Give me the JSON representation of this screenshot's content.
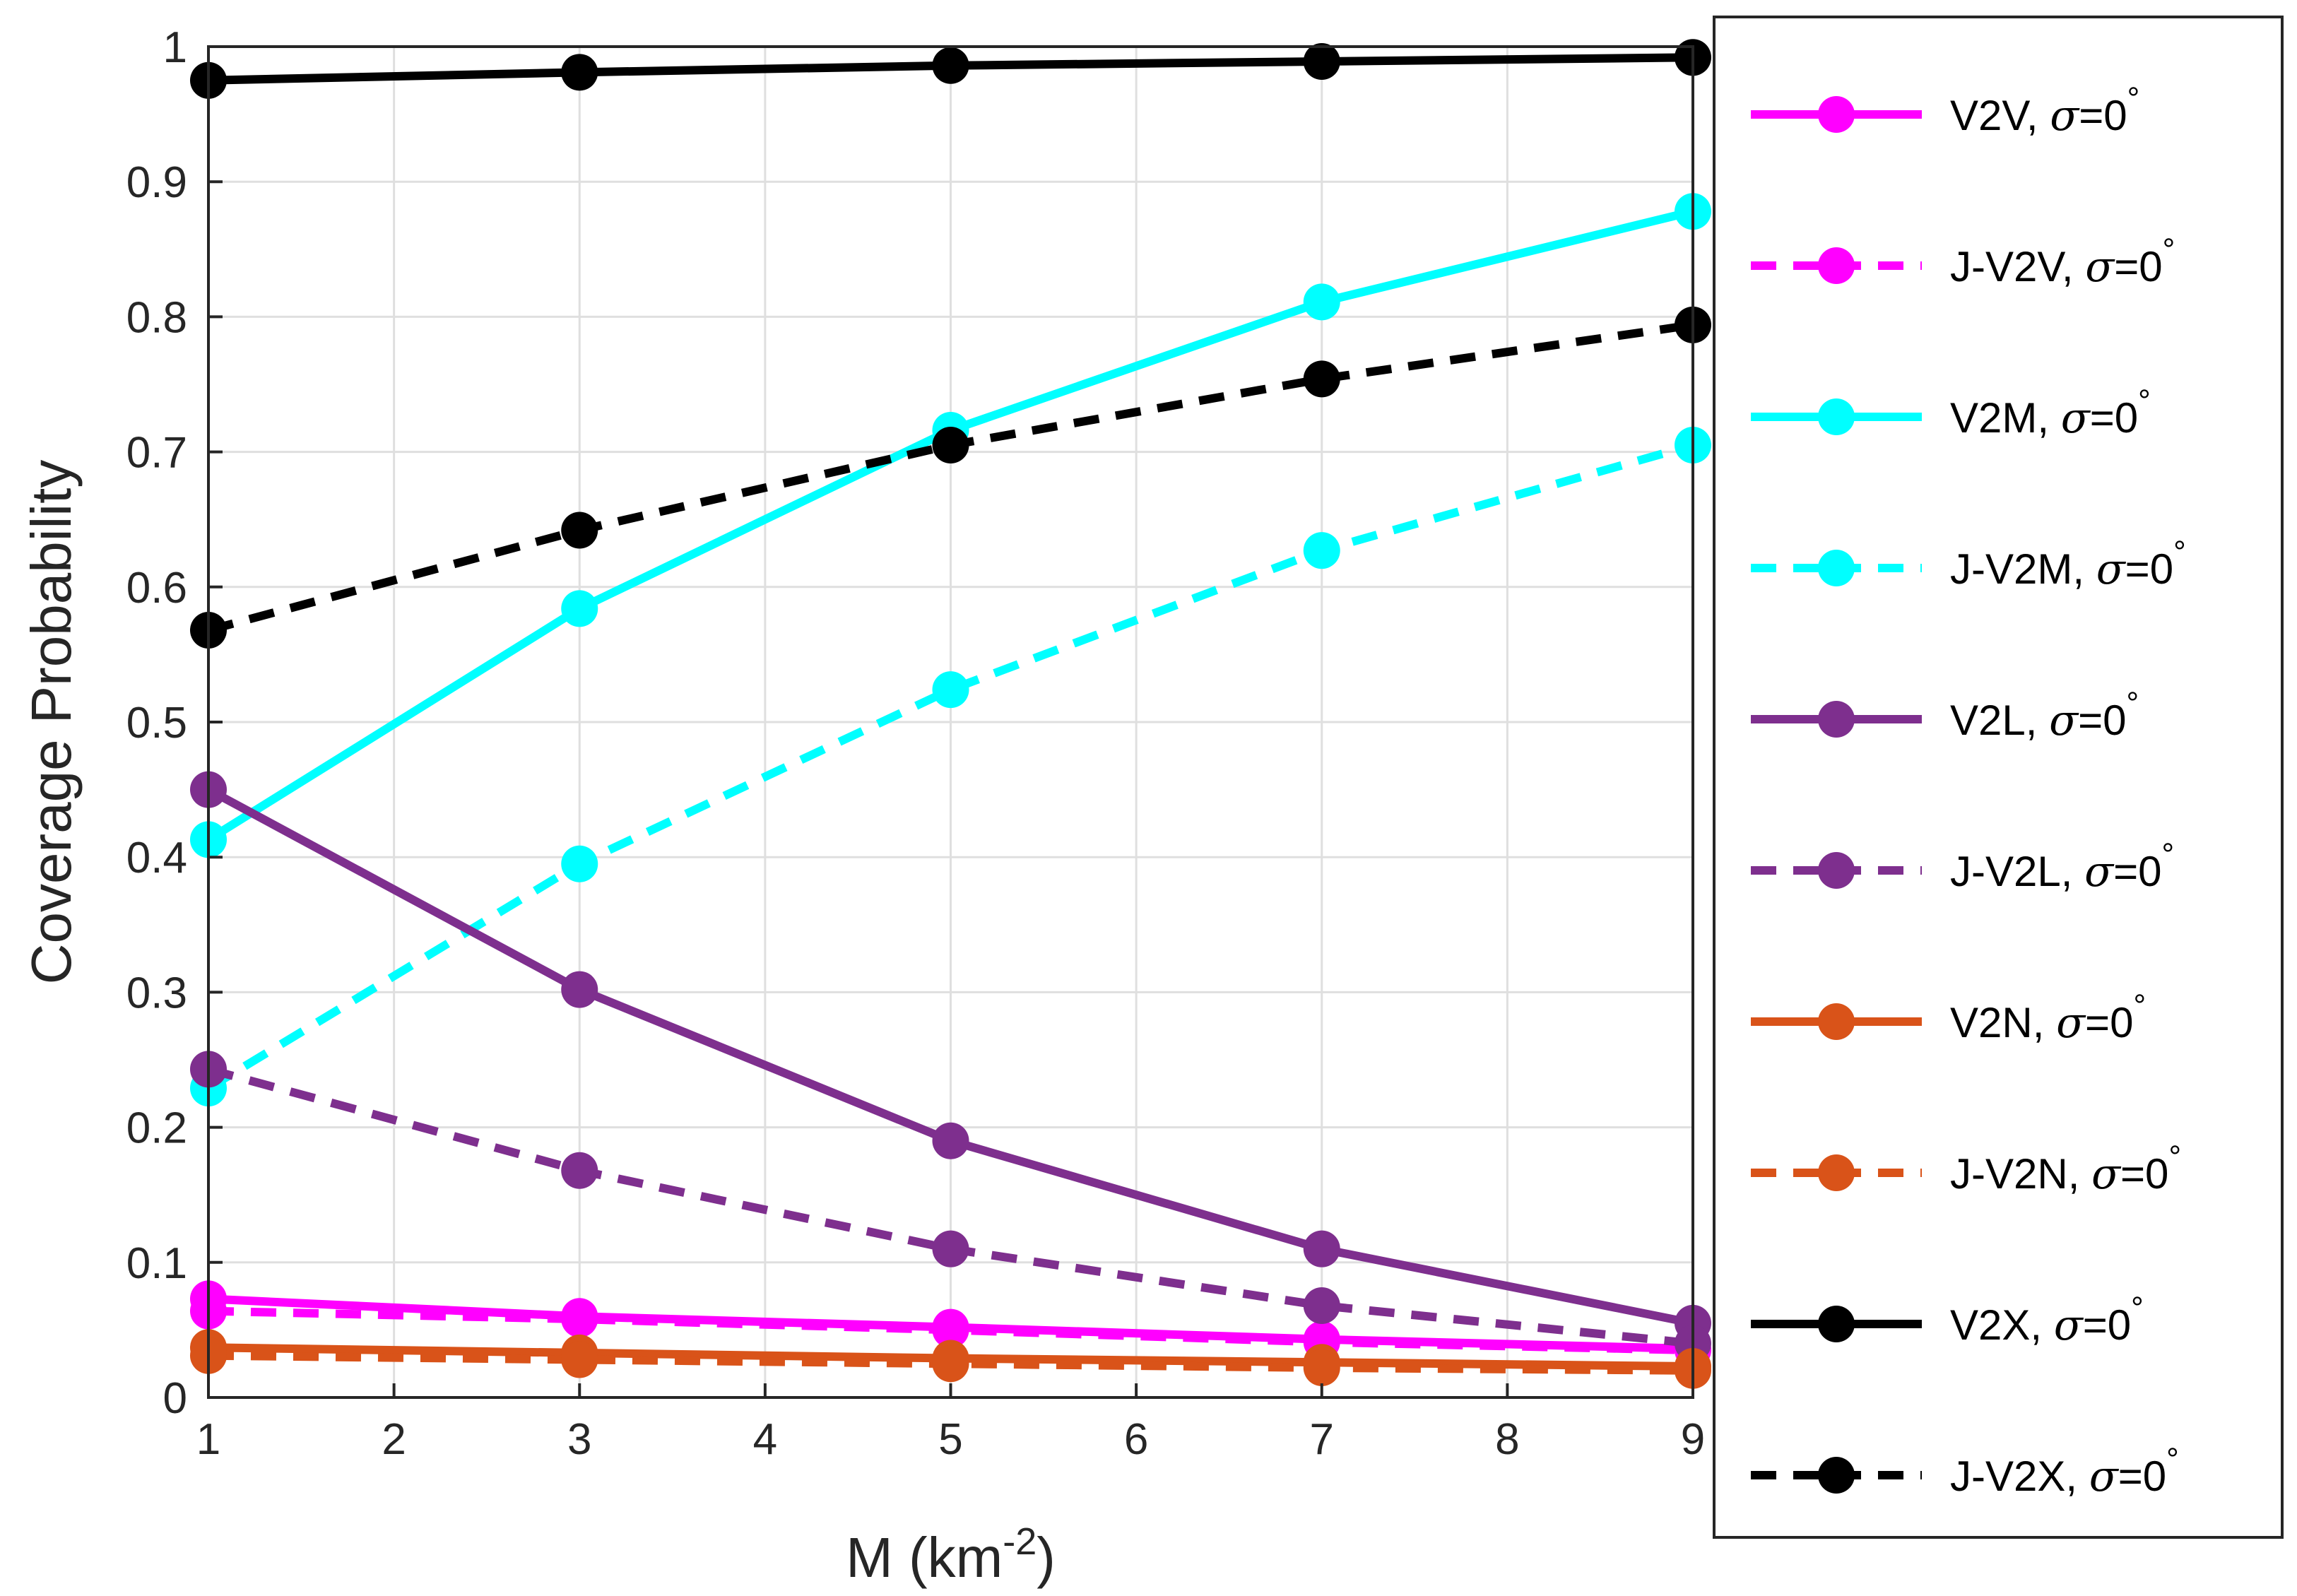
{
  "chart_data": {
    "type": "line",
    "title": "",
    "xlabel": "M (km",
    "xlabel_superscript": "-2",
    "xlabel_suffix": ")",
    "ylabel": "Coverage Probability",
    "xlim": [
      1,
      9
    ],
    "ylim": [
      0,
      1
    ],
    "xticks": [
      "1",
      "2",
      "3",
      "4",
      "5",
      "6",
      "7",
      "8",
      "9"
    ],
    "yticks": [
      "0",
      "0.1",
      "0.2",
      "0.3",
      "0.4",
      "0.5",
      "0.6",
      "0.7",
      "0.8",
      "0.9",
      "1"
    ],
    "grid": true,
    "legend_position": "right",
    "x": [
      1,
      3,
      5,
      7,
      9
    ],
    "series": [
      {
        "name": "V2V",
        "suffix": ", ",
        "sigma": "σ",
        "value_text": "=0",
        "degree": "°",
        "color": "#ff00ff",
        "dash": "solid",
        "values": [
          0.073,
          0.06,
          0.052,
          0.043,
          0.036
        ]
      },
      {
        "name": "J-V2V",
        "suffix": ", ",
        "sigma": "σ",
        "value_text": "=0",
        "degree": "°",
        "color": "#ff00ff",
        "dash": "dashed",
        "values": [
          0.064,
          0.058,
          0.05,
          0.041,
          0.035
        ]
      },
      {
        "name": "V2M",
        "suffix": ", ",
        "sigma": "σ",
        "value_text": "=0",
        "degree": "°",
        "color": "#00ffff",
        "dash": "solid",
        "values": [
          0.413,
          0.584,
          0.716,
          0.811,
          0.878
        ]
      },
      {
        "name": "J-V2M",
        "suffix": ", ",
        "sigma": "σ",
        "value_text": "=0",
        "degree": "°",
        "color": "#00ffff",
        "dash": "dashed",
        "values": [
          0.229,
          0.395,
          0.524,
          0.627,
          0.705
        ]
      },
      {
        "name": "V2L",
        "suffix": ", ",
        "sigma": "σ",
        "value_text": "=0",
        "degree": "°",
        "color": "#7e2f8e",
        "dash": "solid",
        "values": [
          0.45,
          0.302,
          0.19,
          0.11,
          0.055
        ]
      },
      {
        "name": "J-V2L",
        "suffix": ", ",
        "sigma": "σ",
        "value_text": "=0",
        "degree": "°",
        "color": "#7e2f8e",
        "dash": "dashed",
        "values": [
          0.243,
          0.168,
          0.11,
          0.068,
          0.04
        ]
      },
      {
        "name": "V2N",
        "suffix": ", ",
        "sigma": "σ",
        "value_text": "=0",
        "degree": "°",
        "color": "#d95319",
        "dash": "solid",
        "values": [
          0.037,
          0.033,
          0.029,
          0.026,
          0.023
        ]
      },
      {
        "name": "J-V2N",
        "suffix": ", ",
        "sigma": "σ",
        "value_text": "=0",
        "degree": "°",
        "color": "#d95319",
        "dash": "dashed",
        "values": [
          0.031,
          0.028,
          0.025,
          0.022,
          0.02
        ]
      },
      {
        "name": "V2X",
        "suffix": ", ",
        "sigma": "σ",
        "value_text": "=0",
        "degree": "°",
        "color": "#000000",
        "dash": "solid",
        "values": [
          0.975,
          0.981,
          0.986,
          0.989,
          0.992
        ]
      },
      {
        "name": "J-V2X",
        "suffix": ", ",
        "sigma": "σ",
        "value_text": "=0",
        "degree": "°",
        "color": "#000000",
        "dash": "dashed",
        "values": [
          0.568,
          0.642,
          0.705,
          0.754,
          0.794
        ]
      }
    ]
  }
}
